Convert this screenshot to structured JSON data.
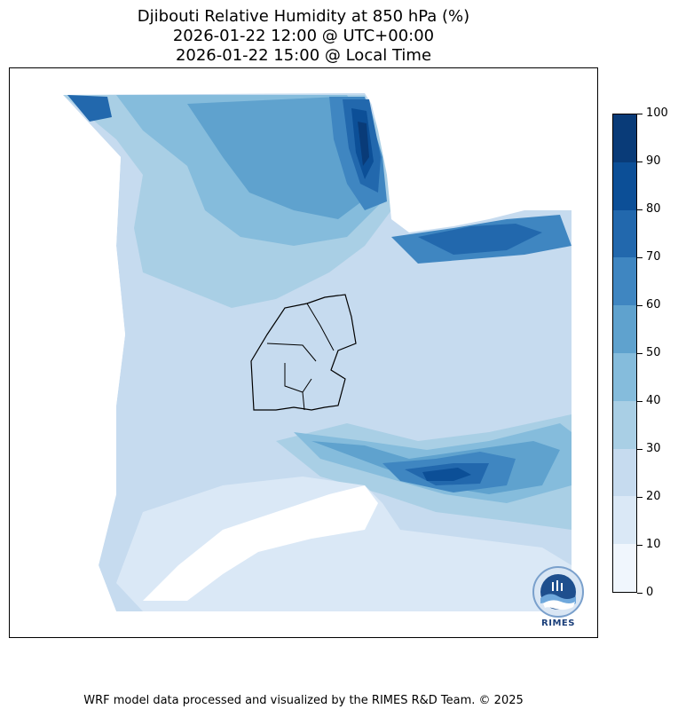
{
  "title": {
    "line1": "Djibouti Relative Humidity at 850 hPa (%)",
    "line2": "2026-01-22 12:00 @ UTC+00:00",
    "line3": "2026-01-22 15:00 @ Local Time"
  },
  "colorbar": {
    "ticks": [
      "0",
      "10",
      "20",
      "30",
      "40",
      "50",
      "60",
      "70",
      "80",
      "90",
      "100"
    ],
    "levels": [
      0,
      10,
      20,
      30,
      40,
      50,
      60,
      70,
      80,
      90,
      100
    ],
    "colors": [
      "#f0f6fd",
      "#dae8f6",
      "#c6dbef",
      "#a9cfe5",
      "#85bcdc",
      "#5fa2ce",
      "#3f86c1",
      "#2268ad",
      "#0c4f97",
      "#093b78"
    ]
  },
  "logo": {
    "label": "RIMES"
  },
  "footer": "WRF model data processed and visualized by the RIMES R&D Team. © 2025"
}
